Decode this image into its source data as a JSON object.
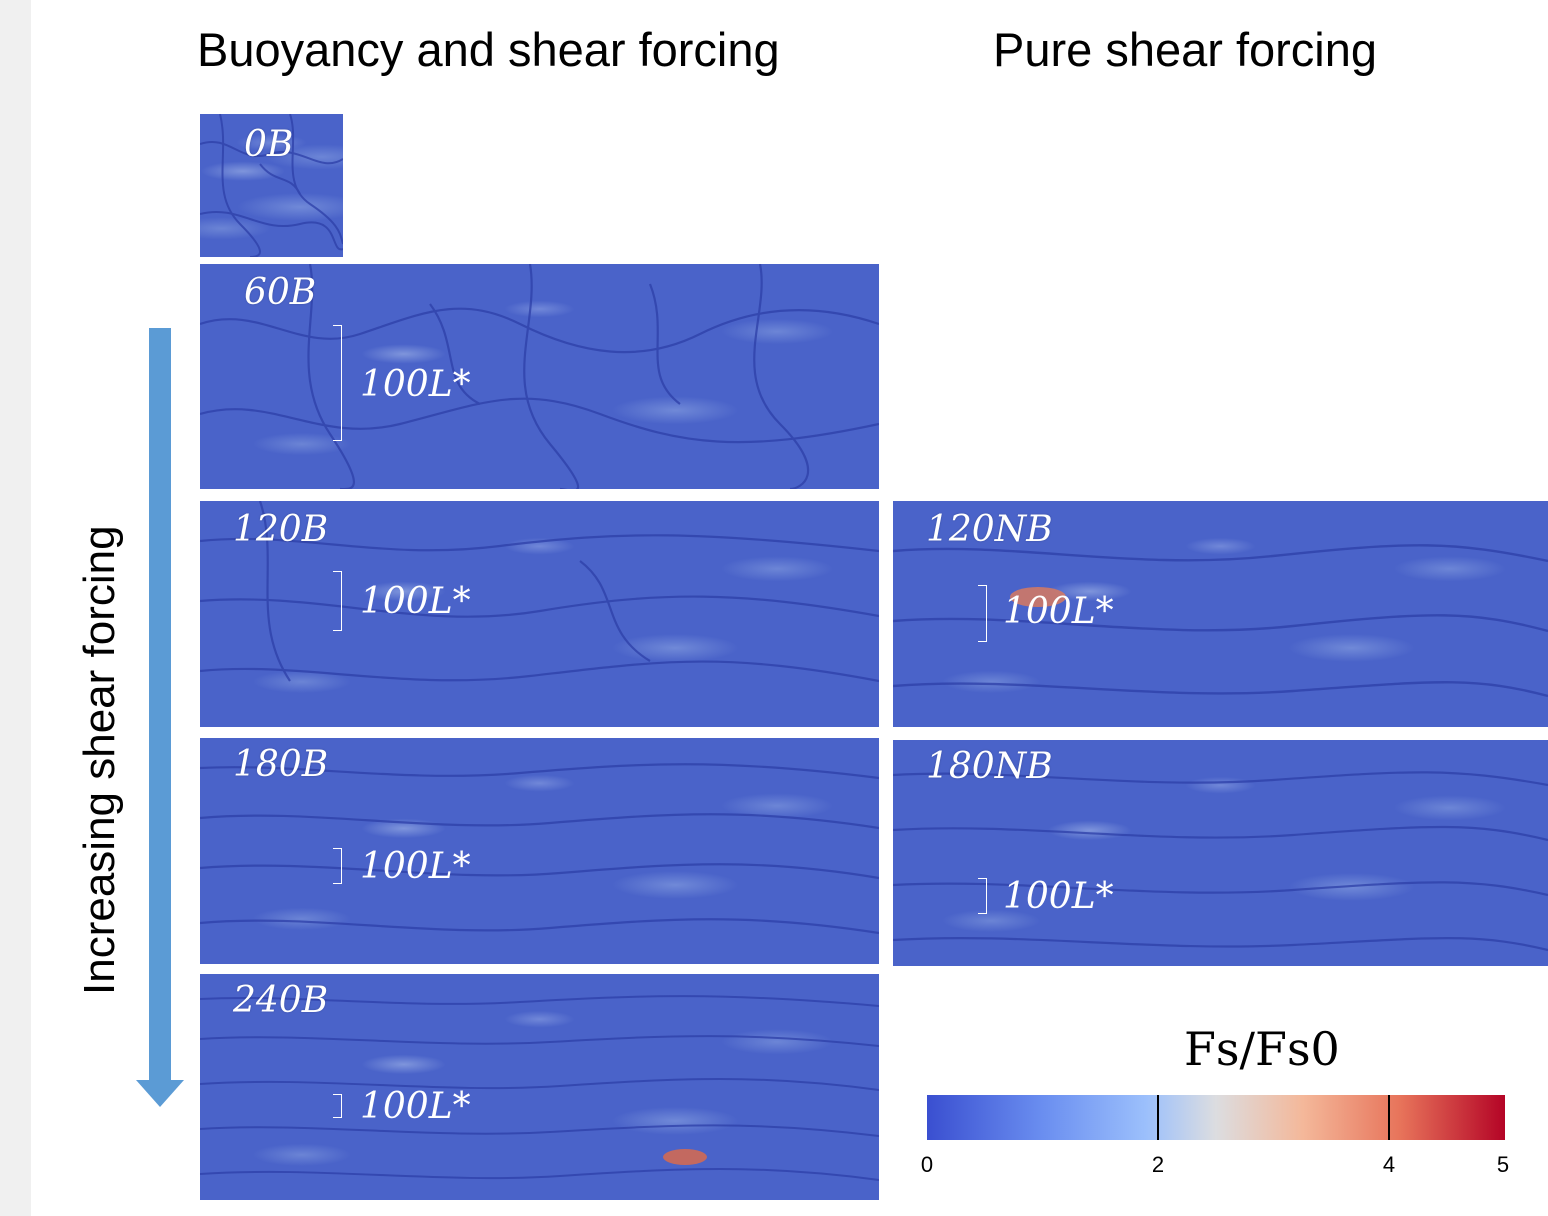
{
  "titles": {
    "left": "Buoyancy and shear forcing",
    "right": "Pure shear forcing"
  },
  "arrow": {
    "label": "Increasing shear forcing",
    "color": "#5b9bd5"
  },
  "panels": [
    {
      "label": "0B",
      "scale": ""
    },
    {
      "label": "60B",
      "scale": "100L*"
    },
    {
      "label": "120B",
      "scale": "100L*"
    },
    {
      "label": "180B",
      "scale": "100L*"
    },
    {
      "label": "240B",
      "scale": "100L*"
    },
    {
      "label": "120NB",
      "scale": "100L*"
    },
    {
      "label": "180NB",
      "scale": "100L*"
    }
  ],
  "colorbar": {
    "title": "Fs/Fs0",
    "min": 0,
    "max": 5,
    "ticks": [
      "0",
      "2",
      "4",
      "5"
    ],
    "marker_lines": [
      2,
      4
    ],
    "colors": [
      "#3a4fd0",
      "#9cc0fc",
      "#dcdde0",
      "#e7735a",
      "#b40426"
    ]
  }
}
